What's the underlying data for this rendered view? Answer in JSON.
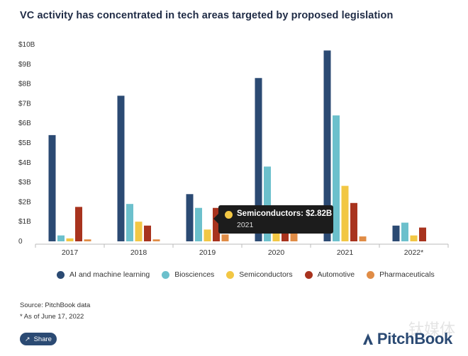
{
  "chart_data": {
    "type": "bar",
    "title": "VC activity has concentrated in tech areas targeted by proposed legislation",
    "categories": [
      "2017",
      "2018",
      "2019",
      "2020",
      "2021",
      "2022*"
    ],
    "y_ticks": [
      "0",
      "$1B",
      "$2B",
      "$3B",
      "$4B",
      "$5B",
      "$6B",
      "$7B",
      "$8B",
      "$9B",
      "$10B"
    ],
    "ylim": [
      0,
      10
    ],
    "grid": false,
    "legend_position": "bottom",
    "series": [
      {
        "name": "AI and machine learning",
        "color": "#2b4a73",
        "values": [
          5.4,
          7.4,
          2.4,
          8.3,
          9.7,
          0.8
        ]
      },
      {
        "name": "Biosciences",
        "color": "#6cc0cc",
        "values": [
          0.3,
          1.9,
          1.7,
          3.8,
          6.4,
          0.95
        ]
      },
      {
        "name": "Semiconductors",
        "color": "#f2c744",
        "values": [
          0.15,
          1.0,
          0.6,
          1.3,
          2.82,
          0.3
        ]
      },
      {
        "name": "Automotive",
        "color": "#a8331e",
        "values": [
          1.75,
          0.8,
          1.7,
          1.3,
          1.95,
          0.7
        ]
      },
      {
        "name": "Pharmaceuticals",
        "color": "#e08c46",
        "values": [
          0.1,
          0.1,
          0.35,
          0.6,
          0.25,
          0.0
        ]
      }
    ],
    "tooltip": {
      "label": "Semiconductors: $2.82B",
      "sublabel": "2021",
      "color": "#f2c744"
    }
  },
  "footer": {
    "source": "Source: PitchBook data",
    "note": "* As of June 17, 2022",
    "share_label": "Share",
    "logo_text": "PitchBook",
    "watermark": "钛媒体"
  }
}
